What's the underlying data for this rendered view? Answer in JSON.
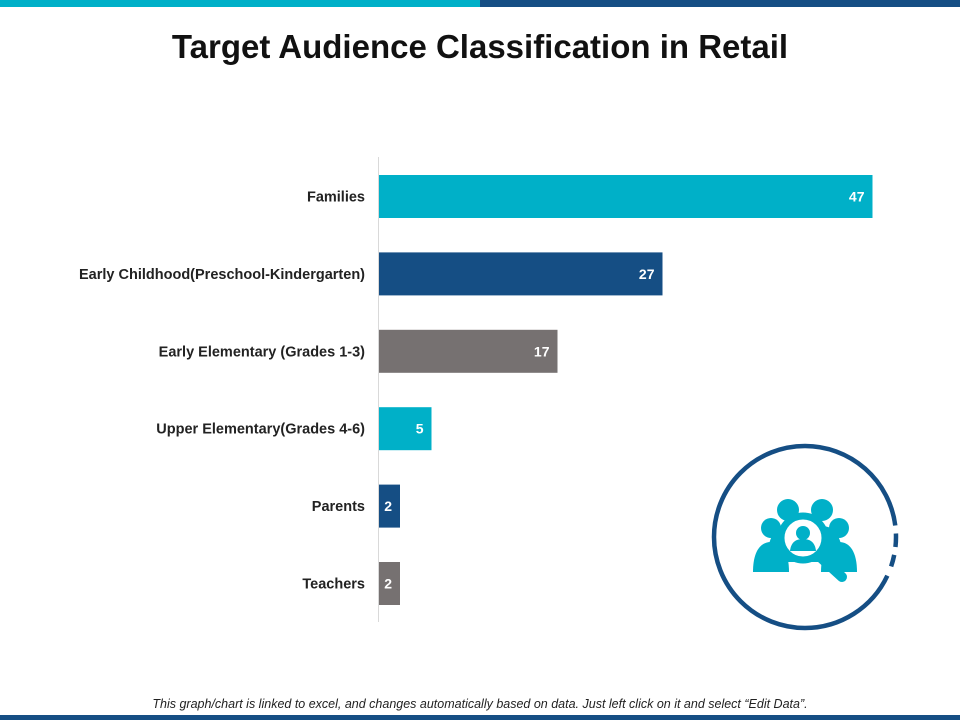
{
  "header": {
    "title": "Target Audience Classification in Retail"
  },
  "footer": {
    "note": "This graph/chart is linked to excel, and changes automatically based on data. Just left click on it and select “Edit Data”."
  },
  "icon": {
    "name": "audience-search-icon"
  },
  "colors": {
    "cyan": "#00b0c8",
    "navy": "#154e84",
    "gray": "#767171"
  },
  "chart_data": {
    "type": "bar",
    "orientation": "horizontal",
    "categories": [
      "Families",
      "Early Childhood(Preschool-Kindergarten)",
      "Early Elementary (Grades 1-3)",
      "Upper Elementary(Grades 4-6)",
      "Parents",
      "Teachers"
    ],
    "values": [
      47,
      27,
      17,
      5,
      2,
      2
    ],
    "bar_colors": [
      "#00b0c8",
      "#154e84",
      "#767171",
      "#00b0c8",
      "#154e84",
      "#767171"
    ],
    "xlim": [
      0,
      50
    ],
    "grid": false,
    "data_labels": true
  }
}
